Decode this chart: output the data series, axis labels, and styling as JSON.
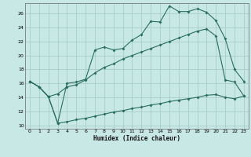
{
  "xlabel": "Humidex (Indice chaleur)",
  "background_color": "#c8e8e5",
  "grid_color": "#a0c8c5",
  "line_color": "#2a6e60",
  "xlim_min": -0.5,
  "xlim_max": 23.5,
  "ylim_min": 9.5,
  "ylim_max": 27.5,
  "yticks": [
    10,
    12,
    14,
    16,
    18,
    20,
    22,
    24,
    26
  ],
  "xticks": [
    0,
    1,
    2,
    3,
    4,
    5,
    6,
    7,
    8,
    9,
    10,
    11,
    12,
    13,
    14,
    15,
    16,
    17,
    18,
    19,
    20,
    21,
    22,
    23
  ],
  "line1_x": [
    0,
    1,
    2,
    3,
    4,
    5,
    6,
    7,
    8,
    9,
    10,
    11,
    12,
    13,
    14,
    15,
    16,
    17,
    18,
    19,
    20,
    21,
    22,
    23
  ],
  "line1_y": [
    16.3,
    15.5,
    14.1,
    10.3,
    16.0,
    16.2,
    16.6,
    20.8,
    21.2,
    20.8,
    21.0,
    22.2,
    23.0,
    24.9,
    24.8,
    27.1,
    26.3,
    26.3,
    26.7,
    26.2,
    25.0,
    22.4,
    18.0,
    16.3
  ],
  "line2_x": [
    0,
    1,
    2,
    3,
    4,
    5,
    6,
    7,
    8,
    9,
    10,
    11,
    12,
    13,
    14,
    15,
    16,
    17,
    18,
    19,
    20,
    21,
    22,
    23
  ],
  "line2_y": [
    16.3,
    15.5,
    14.1,
    14.5,
    15.5,
    15.8,
    16.5,
    17.5,
    18.3,
    18.8,
    19.5,
    20.0,
    20.5,
    21.0,
    21.5,
    22.0,
    22.5,
    23.0,
    23.5,
    23.8,
    22.8,
    16.5,
    16.2,
    14.2
  ],
  "line3_x": [
    0,
    1,
    2,
    3,
    4,
    5,
    6,
    7,
    8,
    9,
    10,
    11,
    12,
    13,
    14,
    15,
    16,
    17,
    18,
    19,
    20,
    21,
    22,
    23
  ],
  "line3_y": [
    16.3,
    15.5,
    14.1,
    10.3,
    10.5,
    10.8,
    11.0,
    11.3,
    11.6,
    11.9,
    12.1,
    12.4,
    12.6,
    12.9,
    13.1,
    13.4,
    13.6,
    13.8,
    14.0,
    14.3,
    14.4,
    14.0,
    13.8,
    14.2
  ]
}
